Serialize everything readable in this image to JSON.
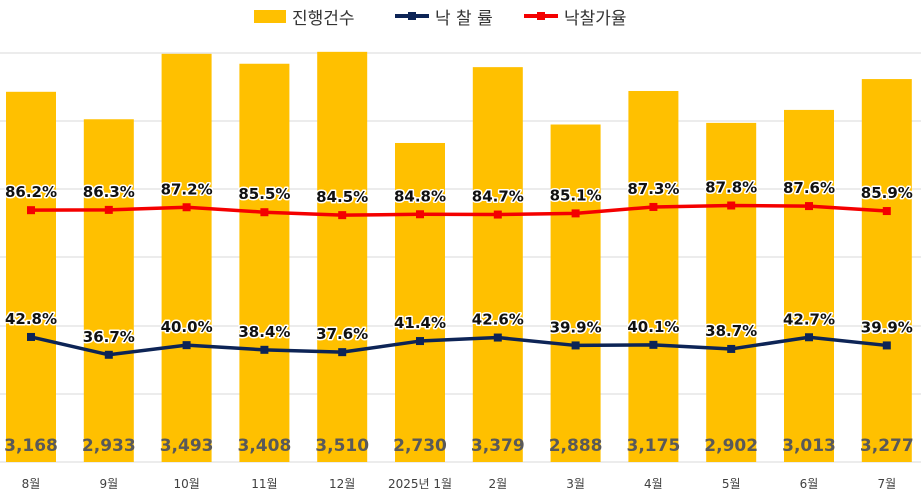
{
  "legend": {
    "bar_label": "진행건수",
    "rate_label": "낙 찰 률",
    "price_label": "낙찰가율"
  },
  "colors": {
    "bar": "#FFC000",
    "rate_line": "#0D2456",
    "price_line": "#F40000",
    "grid": "#D9D9D9"
  },
  "chart_data": {
    "type": "bar",
    "title": "",
    "xlabel": "",
    "ylabel": "",
    "categories": [
      "8월",
      "9월",
      "10월",
      "11월",
      "12월",
      "2025년 1월",
      "2월",
      "3월",
      "4월",
      "5월",
      "6월",
      "7월"
    ],
    "series": [
      {
        "name": "진행건수",
        "type": "bar",
        "axis": "left",
        "values": [
          3168,
          2933,
          3493,
          3408,
          3510,
          2730,
          3379,
          2888,
          3175,
          2902,
          3013,
          3277
        ],
        "labels": [
          "3,168",
          "2,933",
          "3,493",
          "3,408",
          "3,510",
          "2,730",
          "3,379",
          "2,888",
          "3,175",
          "2,902",
          "3,013",
          "3,277"
        ]
      },
      {
        "name": "낙 찰 률",
        "type": "line",
        "axis": "right",
        "values": [
          42.8,
          36.7,
          40.0,
          38.4,
          37.6,
          41.4,
          42.6,
          39.9,
          40.1,
          38.7,
          42.7,
          39.9
        ],
        "labels": [
          "42.8%",
          "36.7%",
          "40.0%",
          "38.4%",
          "37.6%",
          "41.4%",
          "42.6%",
          "39.9%",
          "40.1%",
          "38.7%",
          "42.7%",
          "39.9%"
        ]
      },
      {
        "name": "낙찰가율",
        "type": "line",
        "axis": "right",
        "values": [
          86.2,
          86.3,
          87.2,
          85.5,
          84.5,
          84.8,
          84.7,
          85.1,
          87.3,
          87.8,
          87.6,
          85.9
        ],
        "labels": [
          "86.2%",
          "86.3%",
          "87.2%",
          "85.5%",
          "84.5%",
          "84.8%",
          "84.7%",
          "85.1%",
          "87.3%",
          "87.8%",
          "87.6%",
          "85.9%"
        ]
      }
    ],
    "ylim_left": [
      0,
      3500
    ],
    "ylim_right": [
      0,
      140
    ],
    "grid": true,
    "legend_position": "top-center"
  }
}
